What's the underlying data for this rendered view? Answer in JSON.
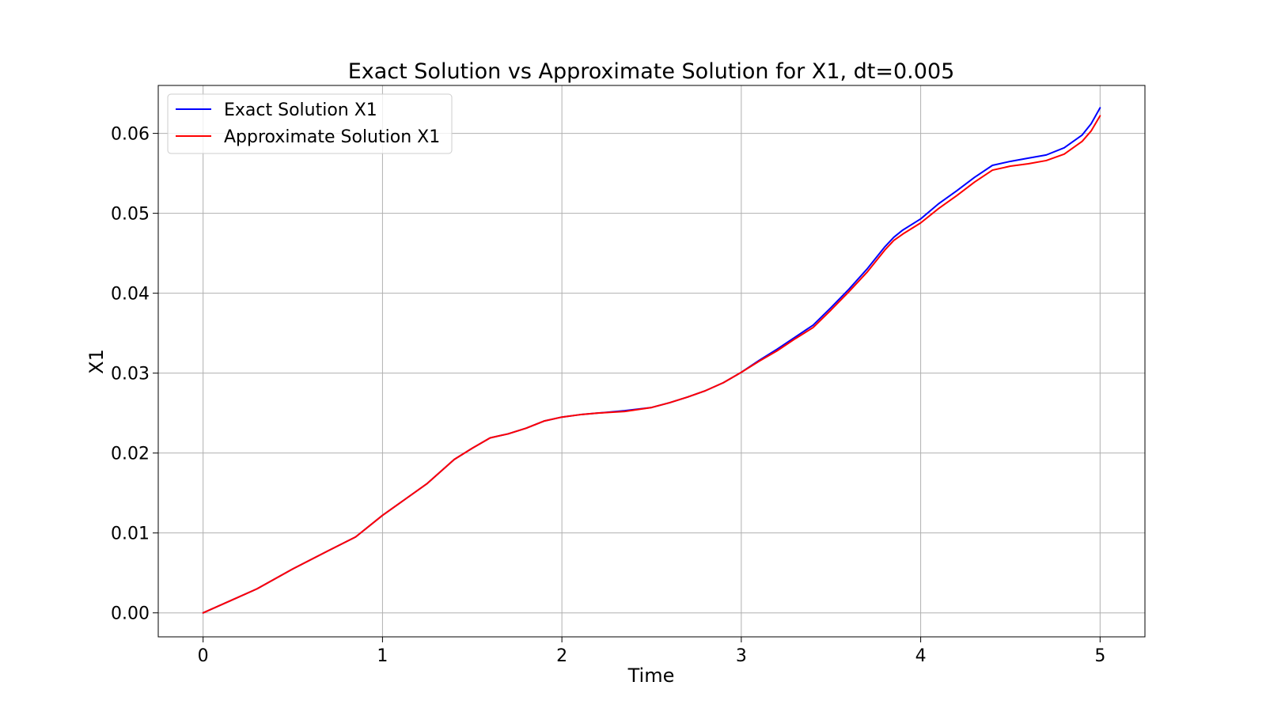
{
  "chart_data": {
    "type": "line",
    "title": "Exact Solution vs Approximate Solution for X1, dt=0.005",
    "xlabel": "Time",
    "ylabel": "X1",
    "xlim": [
      -0.25,
      5.25
    ],
    "ylim": [
      -0.003,
      0.066
    ],
    "xticks": [
      0,
      1,
      2,
      3,
      4,
      5
    ],
    "xtick_labels": [
      "0",
      "1",
      "2",
      "3",
      "4",
      "5"
    ],
    "yticks": [
      0.0,
      0.01,
      0.02,
      0.03,
      0.04,
      0.05,
      0.06
    ],
    "ytick_labels": [
      "0.00",
      "0.01",
      "0.02",
      "0.03",
      "0.04",
      "0.05",
      "0.06"
    ],
    "grid": true,
    "legend_position": "top-left",
    "x": [
      0,
      0.15,
      0.3,
      0.5,
      0.7,
      0.85,
      1.0,
      1.1,
      1.25,
      1.4,
      1.5,
      1.6,
      1.7,
      1.8,
      1.9,
      2.0,
      2.1,
      2.2,
      2.35,
      2.5,
      2.6,
      2.7,
      2.8,
      2.9,
      3.0,
      3.1,
      3.2,
      3.3,
      3.4,
      3.5,
      3.6,
      3.7,
      3.8,
      3.85,
      3.9,
      4.0,
      4.1,
      4.2,
      4.3,
      4.4,
      4.5,
      4.6,
      4.7,
      4.8,
      4.9,
      4.95,
      5.0
    ],
    "series": [
      {
        "name": "Exact Solution X1",
        "color": "#0000ff",
        "values": [
          0.0,
          0.0015,
          0.003,
          0.0055,
          0.0078,
          0.0095,
          0.0122,
          0.0138,
          0.0162,
          0.0192,
          0.0206,
          0.0219,
          0.0224,
          0.0231,
          0.024,
          0.0245,
          0.0248,
          0.025,
          0.0253,
          0.0257,
          0.0263,
          0.027,
          0.0278,
          0.0288,
          0.0301,
          0.0316,
          0.033,
          0.0345,
          0.036,
          0.0382,
          0.0405,
          0.043,
          0.0458,
          0.047,
          0.0479,
          0.0493,
          0.0512,
          0.0528,
          0.0545,
          0.056,
          0.0565,
          0.0569,
          0.0573,
          0.0582,
          0.0598,
          0.0612,
          0.0632
        ]
      },
      {
        "name": "Approximate Solution X1",
        "color": "#ff0000",
        "values": [
          0.0,
          0.0015,
          0.003,
          0.0055,
          0.0078,
          0.0095,
          0.0122,
          0.0138,
          0.0162,
          0.0192,
          0.0206,
          0.0219,
          0.0224,
          0.0231,
          0.024,
          0.0245,
          0.0248,
          0.025,
          0.0252,
          0.0257,
          0.0263,
          0.027,
          0.0278,
          0.0288,
          0.0301,
          0.0315,
          0.0328,
          0.0343,
          0.0357,
          0.0379,
          0.0402,
          0.0426,
          0.0454,
          0.0466,
          0.0474,
          0.0488,
          0.0506,
          0.0522,
          0.0539,
          0.0554,
          0.0559,
          0.0562,
          0.0566,
          0.0574,
          0.059,
          0.0603,
          0.0622
        ]
      }
    ]
  }
}
